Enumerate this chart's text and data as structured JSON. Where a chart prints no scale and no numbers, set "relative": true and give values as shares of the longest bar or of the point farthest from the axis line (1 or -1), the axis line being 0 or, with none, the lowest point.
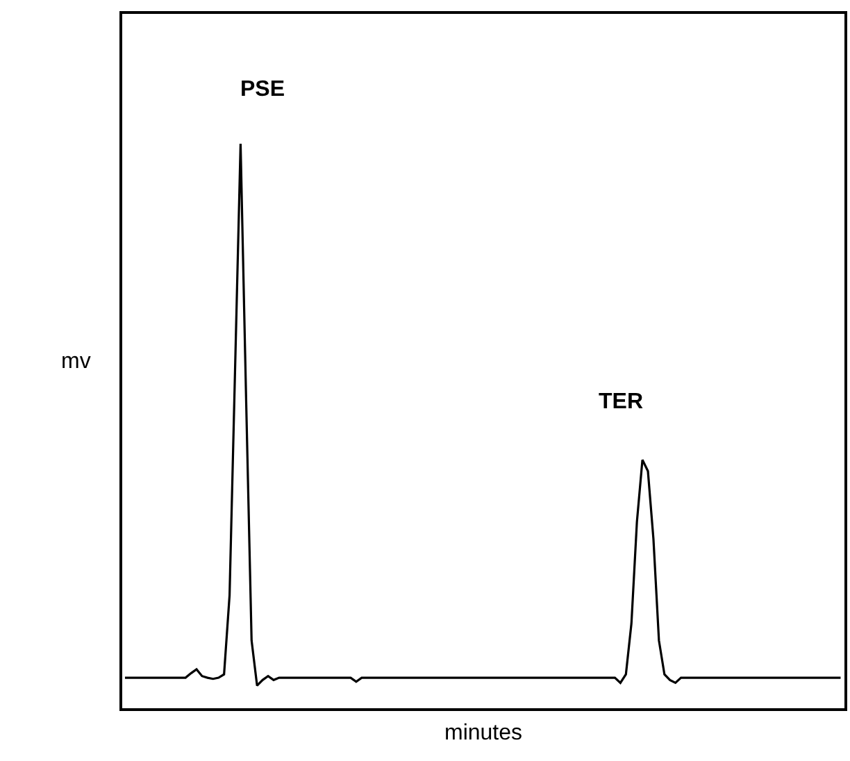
{
  "chart_data": {
    "type": "line",
    "relative": true,
    "xlabel": "minutes",
    "ylabel": "mv",
    "color": "#000000",
    "legend": false,
    "marker": "none",
    "annotations": [
      "PSE",
      "TER"
    ],
    "categories": [
      null,
      null,
      null,
      null,
      null,
      null,
      null,
      null,
      null,
      null,
      null,
      null,
      null,
      null,
      null,
      null,
      null,
      null,
      null,
      null,
      null,
      null,
      null,
      null,
      null,
      null,
      null,
      null,
      null,
      null,
      null,
      null,
      null,
      null,
      null,
      null,
      null,
      null,
      null,
      null,
      null,
      null,
      null,
      null,
      null,
      null,
      null,
      null,
      null,
      null,
      null,
      null,
      null,
      null,
      null,
      null,
      null,
      null,
      null,
      null,
      null,
      null,
      null,
      null,
      null,
      null,
      null,
      null,
      null,
      null,
      null,
      null,
      null,
      null,
      null,
      null,
      null,
      null,
      null,
      null,
      null,
      null,
      null,
      null,
      null,
      null,
      null,
      null,
      null,
      null,
      null,
      null,
      null,
      null,
      null,
      null,
      null,
      null,
      null,
      null,
      null,
      null,
      null,
      null,
      null,
      null,
      null,
      null,
      null,
      null,
      null,
      null,
      null,
      null,
      null,
      null,
      null,
      null,
      null,
      null,
      null,
      null,
      null,
      null,
      null,
      null,
      null,
      null,
      null,
      null,
      null
    ],
    "values": [
      0.054,
      0.054,
      0.054,
      0.054,
      0.054,
      0.054,
      0.054,
      0.054,
      0.054,
      0.054,
      0.054,
      0.054,
      0.062,
      0.069,
      0.057,
      0.054,
      0.052,
      0.054,
      0.06,
      0.2,
      0.6,
      1.0,
      0.55,
      0.12,
      0.04,
      0.05,
      0.057,
      0.05,
      0.054,
      0.054,
      0.054,
      0.054,
      0.054,
      0.054,
      0.054,
      0.054,
      0.054,
      0.054,
      0.054,
      0.054,
      0.054,
      0.054,
      0.047,
      0.054,
      0.054,
      0.054,
      0.054,
      0.054,
      0.054,
      0.054,
      0.054,
      0.054,
      0.054,
      0.054,
      0.054,
      0.054,
      0.054,
      0.054,
      0.054,
      0.054,
      0.054,
      0.054,
      0.054,
      0.054,
      0.054,
      0.054,
      0.054,
      0.054,
      0.054,
      0.054,
      0.054,
      0.054,
      0.054,
      0.054,
      0.054,
      0.054,
      0.054,
      0.054,
      0.054,
      0.054,
      0.054,
      0.054,
      0.054,
      0.054,
      0.054,
      0.054,
      0.054,
      0.054,
      0.054,
      0.054,
      0.045,
      0.06,
      0.15,
      0.33,
      0.44,
      0.42,
      0.3,
      0.12,
      0.06,
      0.05,
      0.045,
      0.054,
      0.054,
      0.054,
      0.054,
      0.054,
      0.054,
      0.054,
      0.054,
      0.054,
      0.054,
      0.054,
      0.054,
      0.054,
      0.054,
      0.054,
      0.054,
      0.054,
      0.054,
      0.054,
      0.054,
      0.054,
      0.054,
      0.054,
      0.054,
      0.054,
      0.054,
      0.054,
      0.054,
      0.054,
      0.054
    ]
  }
}
